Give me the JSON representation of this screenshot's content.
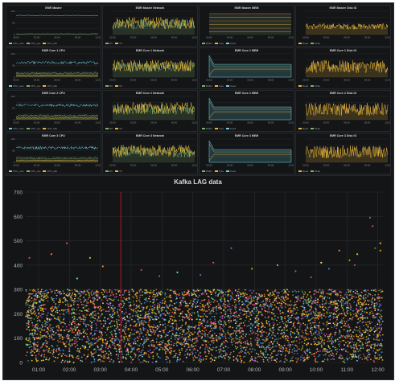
{
  "dashboard": {
    "panels": [
      {
        "title": "EMR Master",
        "kind": "cpu",
        "legend": [
          "CPU_user",
          "CPU_sys",
          "CPU_idle"
        ],
        "yticks": [
          "100",
          "50",
          "0"
        ],
        "xticks": [
          "00:00",
          "03:00",
          "06:00",
          "09:00",
          "12:00"
        ]
      },
      {
        "title": "EMR Master Network",
        "kind": "net",
        "legend": [
          "RX",
          "TX"
        ],
        "yticks": [
          "",
          "",
          ""
        ],
        "xticks": [
          "00:00",
          "03:00",
          "06:00",
          "09:00",
          "12:00"
        ]
      },
      {
        "title": "EMR Master MEM",
        "kind": "mem",
        "legend": [
          "Buffer",
          "Free",
          "Used"
        ],
        "yticks": [
          "",
          "",
          ""
        ],
        "xticks": [
          "00:00",
          "03:00",
          "06:00",
          "09:00",
          "12:00"
        ]
      },
      {
        "title": "EMR Master Disk IO",
        "kind": "disk",
        "legend": [
          "Read",
          "Write"
        ],
        "yticks": [
          "",
          "",
          ""
        ],
        "xticks": [
          "00:00",
          "03:00",
          "06:00",
          "09:00",
          "12:00"
        ]
      },
      {
        "title": "EMR Core 1 CPU",
        "kind": "cpu",
        "legend": [
          "CPU_user",
          "CPU_sys",
          "CPU_idle"
        ],
        "yticks": [
          "100",
          "50",
          "0"
        ],
        "xticks": [
          "00:00",
          "03:00",
          "06:00",
          "09:00",
          "12:00"
        ]
      },
      {
        "title": "EMR Core 1 Network",
        "kind": "net",
        "legend": [
          "RX",
          "TX"
        ],
        "yticks": [
          "",
          "",
          ""
        ],
        "xticks": [
          "00:00",
          "03:00",
          "06:00",
          "09:00",
          "12:00"
        ]
      },
      {
        "title": "EMR Core 1 MEM",
        "kind": "mem",
        "legend": [
          "Buffer",
          "Free",
          "Used"
        ],
        "yticks": [
          "",
          "",
          ""
        ],
        "xticks": [
          "00:00",
          "03:00",
          "06:00",
          "09:00",
          "12:00"
        ]
      },
      {
        "title": "EMR Core 1 Disk IO",
        "kind": "disk",
        "legend": [
          "Read",
          "Write"
        ],
        "yticks": [
          "",
          "",
          ""
        ],
        "xticks": [
          "00:00",
          "03:00",
          "06:00",
          "09:00",
          "12:00"
        ]
      },
      {
        "title": "EMR Core 2 CPU",
        "kind": "cpu",
        "legend": [
          "CPU_user",
          "CPU_sys",
          "CPU_idle"
        ],
        "yticks": [
          "100",
          "50",
          "0"
        ],
        "xticks": [
          "00:00",
          "03:00",
          "06:00",
          "09:00",
          "12:00"
        ]
      },
      {
        "title": "EMR Core 2 Network",
        "kind": "net",
        "legend": [
          "RX",
          "TX"
        ],
        "yticks": [
          "",
          "",
          ""
        ],
        "xticks": [
          "00:00",
          "03:00",
          "06:00",
          "09:00",
          "12:00"
        ]
      },
      {
        "title": "EMR Core 2 MEM",
        "kind": "mem",
        "legend": [
          "Buffer",
          "Free",
          "Used"
        ],
        "yticks": [
          "",
          "",
          ""
        ],
        "xticks": [
          "00:00",
          "03:00",
          "06:00",
          "09:00",
          "12:00"
        ]
      },
      {
        "title": "EMR Core 2 Disk IO",
        "kind": "disk",
        "legend": [
          "Read",
          "Write"
        ],
        "yticks": [
          "",
          "",
          ""
        ],
        "xticks": [
          "00:00",
          "03:00",
          "06:00",
          "09:00",
          "12:00"
        ]
      },
      {
        "title": "EMR Core 3 CPU",
        "kind": "cpu",
        "legend": [
          "CPU_user",
          "CPU_sys",
          "CPU_idle"
        ],
        "yticks": [
          "100",
          "50",
          "0"
        ],
        "xticks": [
          "00:00",
          "03:00",
          "06:00",
          "09:00",
          "12:00"
        ]
      },
      {
        "title": "EMR Core 3 Network",
        "kind": "net",
        "legend": [
          "RX",
          "TX"
        ],
        "yticks": [
          "",
          "",
          ""
        ],
        "xticks": [
          "00:00",
          "03:00",
          "06:00",
          "09:00",
          "12:00"
        ]
      },
      {
        "title": "EMR Core 3 MEM",
        "kind": "mem",
        "legend": [
          "Buffer",
          "Free",
          "Used"
        ],
        "yticks": [
          "",
          "",
          ""
        ],
        "xticks": [
          "00:00",
          "03:00",
          "06:00",
          "09:00",
          "12:00"
        ]
      },
      {
        "title": "EMR Core 3 Disk IO",
        "kind": "disk",
        "legend": [
          "Read",
          "Write"
        ],
        "yticks": [
          "",
          "",
          ""
        ],
        "xticks": [
          "00:00",
          "03:00",
          "06:00",
          "09:00",
          "12:00"
        ]
      }
    ]
  },
  "colors": {
    "cpu_user": "#6ed0e0",
    "cpu_sys": "#7eb26d",
    "cpu_idle": "#eab839",
    "net_rx": "#7eb26d",
    "net_tx": "#eab839",
    "mem_a": "#7eb26d",
    "mem_b": "#eab839",
    "mem_c": "#6ed0e0",
    "disk": "#eab839",
    "scatter_palette": [
      "#7eb26d",
      "#eab839",
      "#6ed0e0",
      "#ef843c",
      "#e24d42",
      "#1f78c1",
      "#ba43a9",
      "#705da0",
      "#508642",
      "#cca300",
      "#447ebc",
      "#c15c17",
      "#f4d598",
      "#e5ac0e"
    ]
  },
  "chart_data": {
    "type": "scatter",
    "title": "Kafka LAG data",
    "xlabel": "",
    "ylabel": "",
    "x_ticks": [
      "01:00",
      "02:00",
      "03:00",
      "04:00",
      "05:00",
      "06:00",
      "07:00",
      "08:00",
      "09:00",
      "10:00",
      "11:00",
      "12:00"
    ],
    "y_ticks": [
      "0",
      "100",
      "200",
      "300",
      "400",
      "500",
      "600",
      "700"
    ],
    "ylim": [
      0,
      700
    ],
    "xlim": [
      "00:35",
      "12:10"
    ],
    "grid": true,
    "marker_line_time": "03:40",
    "dense_band": {
      "y_min": 0,
      "y_max": 300,
      "points_per_hour": 400
    },
    "outliers": [
      {
        "x": "00:42",
        "y": 430
      },
      {
        "x": "01:25",
        "y": 445
      },
      {
        "x": "01:55",
        "y": 490
      },
      {
        "x": "02:40",
        "y": 430
      },
      {
        "x": "03:05",
        "y": 395
      },
      {
        "x": "04:20",
        "y": 380
      },
      {
        "x": "05:30",
        "y": 370
      },
      {
        "x": "06:40",
        "y": 410
      },
      {
        "x": "07:15",
        "y": 470
      },
      {
        "x": "07:55",
        "y": 385
      },
      {
        "x": "08:45",
        "y": 400
      },
      {
        "x": "09:20",
        "y": 375
      },
      {
        "x": "10:10",
        "y": 410
      },
      {
        "x": "10:25",
        "y": 385
      },
      {
        "x": "10:45",
        "y": 460
      },
      {
        "x": "11:05",
        "y": 420
      },
      {
        "x": "11:15",
        "y": 400
      },
      {
        "x": "11:20",
        "y": 445
      },
      {
        "x": "11:45",
        "y": 595
      },
      {
        "x": "11:50",
        "y": 560
      },
      {
        "x": "11:55",
        "y": 470
      },
      {
        "x": "12:05",
        "y": 490
      },
      {
        "x": "12:05",
        "y": 460
      },
      {
        "x": "06:15",
        "y": 360
      },
      {
        "x": "09:50",
        "y": 350
      },
      {
        "x": "04:55",
        "y": 355
      },
      {
        "x": "02:15",
        "y": 345
      }
    ]
  }
}
